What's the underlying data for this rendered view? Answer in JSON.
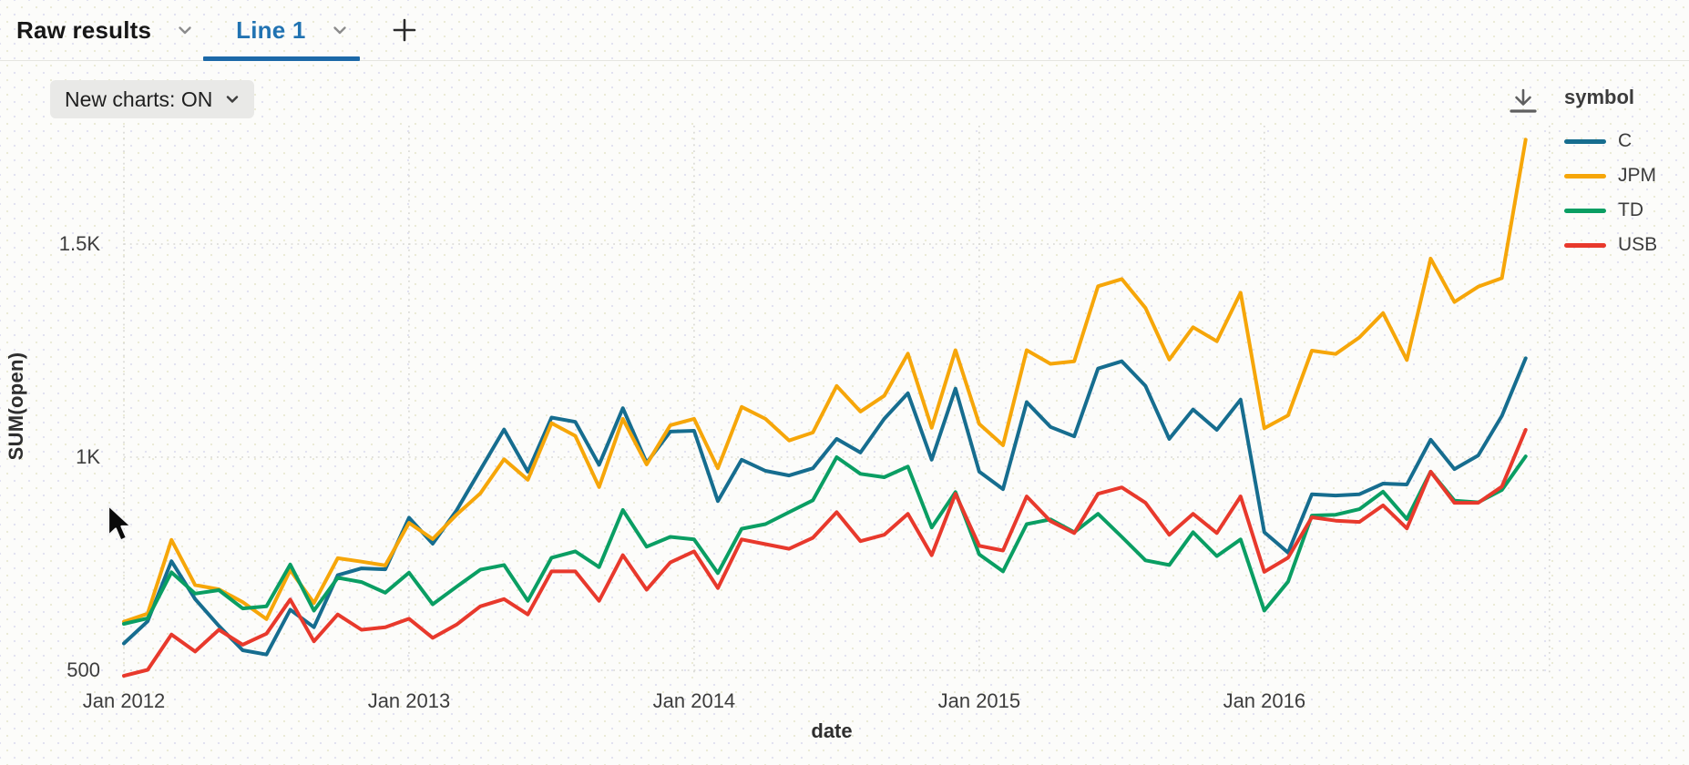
{
  "tabs": {
    "raw_results_label": "Raw results",
    "line1_label": "Line 1",
    "add_tab_label": "+"
  },
  "toolbar": {
    "new_charts_label": "New charts: ON"
  },
  "colors": {
    "active_tab": "#2173b2",
    "active_underline": "#1c69a8",
    "pill_bg": "#e9e9e7",
    "gridline": "#d8d8d4",
    "icon_gray": "#5f5f5f"
  },
  "chart_data": {
    "type": "line",
    "title": "",
    "xlabel": "date",
    "ylabel": "SUM(open)",
    "legend_title": "symbol",
    "legend_position": "right",
    "grid": "dotted",
    "ylim": [
      450,
      1790
    ],
    "y_ticks": [
      {
        "label": "500",
        "value": 500
      },
      {
        "label": "1K",
        "value": 1000
      },
      {
        "label": "1.5K",
        "value": 1500
      }
    ],
    "x_ticks": [
      {
        "label": "Jan 2012",
        "month_index": 0
      },
      {
        "label": "Jan 2013",
        "month_index": 12
      },
      {
        "label": "Jan 2014",
        "month_index": 24
      },
      {
        "label": "Jan 2015",
        "month_index": 36
      },
      {
        "label": "Jan 2016",
        "month_index": 48
      }
    ],
    "x_gridline_indices": [
      0,
      12,
      24,
      36,
      48,
      60
    ],
    "x": [
      "2012-01",
      "2012-02",
      "2012-03",
      "2012-04",
      "2012-05",
      "2012-06",
      "2012-07",
      "2012-08",
      "2012-09",
      "2012-10",
      "2012-11",
      "2012-12",
      "2013-01",
      "2013-02",
      "2013-03",
      "2013-04",
      "2013-05",
      "2013-06",
      "2013-07",
      "2013-08",
      "2013-09",
      "2013-10",
      "2013-11",
      "2013-12",
      "2014-01",
      "2014-02",
      "2014-03",
      "2014-04",
      "2014-05",
      "2014-06",
      "2014-07",
      "2014-08",
      "2014-09",
      "2014-10",
      "2014-11",
      "2014-12",
      "2015-01",
      "2015-02",
      "2015-03",
      "2015-04",
      "2015-05",
      "2015-06",
      "2015-07",
      "2015-08",
      "2015-09",
      "2015-10",
      "2015-11",
      "2015-12",
      "2016-01",
      "2016-02",
      "2016-03",
      "2016-04",
      "2016-05",
      "2016-06",
      "2016-07",
      "2016-08",
      "2016-09",
      "2016-10",
      "2016-11",
      "2016-12"
    ],
    "series": [
      {
        "name": "C",
        "color": "#166d8f",
        "values": [
          563,
          615,
          756,
          667,
          604,
          547,
          537,
          642,
          601,
          723,
          739,
          737,
          858,
          797,
          875,
          970,
          1065,
          966,
          1093,
          1083,
          982,
          1115,
          987,
          1060,
          1062,
          897,
          994,
          968,
          957,
          974,
          1043,
          1011,
          1090,
          1150,
          994,
          1161,
          966,
          925,
          1129,
          1071,
          1049,
          1208,
          1225,
          1167,
          1043,
          1112,
          1064,
          1135,
          824,
          776,
          913,
          910,
          913,
          938,
          936,
          1041,
          972,
          1004,
          1097,
          1232
        ]
      },
      {
        "name": "JPM",
        "color": "#f6a609",
        "values": [
          614,
          633,
          806,
          700,
          690,
          660,
          620,
          735,
          658,
          763,
          755,
          746,
          846,
          808,
          865,
          915,
          995,
          947,
          1080,
          1050,
          930,
          1090,
          983,
          1075,
          1090,
          974,
          1118,
          1090,
          1039,
          1058,
          1167,
          1107,
          1144,
          1243,
          1069,
          1251,
          1078,
          1028,
          1251,
          1219,
          1225,
          1401,
          1418,
          1350,
          1229,
          1305,
          1272,
          1386,
          1068,
          1098,
          1250,
          1242,
          1281,
          1338,
          1228,
          1466,
          1364,
          1400,
          1420,
          1745
        ]
      },
      {
        "name": "TD",
        "color": "#0a9e63",
        "values": [
          609,
          622,
          730,
          680,
          688,
          645,
          650,
          748,
          640,
          717,
          707,
          682,
          729,
          655,
          696,
          736,
          747,
          663,
          764,
          779,
          742,
          876,
          790,
          813,
          807,
          728,
          832,
          843,
          871,
          899,
          1000,
          961,
          953,
          978,
          835,
          918,
          772,
          732,
          843,
          854,
          824,
          867,
          813,
          758,
          747,
          824,
          768,
          807,
          640,
          708,
          863,
          865,
          878,
          919,
          855,
          966,
          898,
          894,
          923,
          1002
        ]
      },
      {
        "name": "USB",
        "color": "#e8392c",
        "values": [
          487,
          501,
          584,
          544,
          595,
          560,
          586,
          666,
          568,
          631,
          595,
          601,
          621,
          576,
          607,
          650,
          667,
          631,
          732,
          732,
          663,
          770,
          689,
          753,
          779,
          693,
          807,
          796,
          785,
          811,
          871,
          803,
          818,
          867,
          770,
          914,
          792,
          781,
          908,
          850,
          822,
          914,
          929,
          893,
          818,
          867,
          822,
          908,
          731,
          764,
          859,
          851,
          848,
          887,
          833,
          966,
          893,
          893,
          931,
          1064
        ]
      }
    ]
  }
}
